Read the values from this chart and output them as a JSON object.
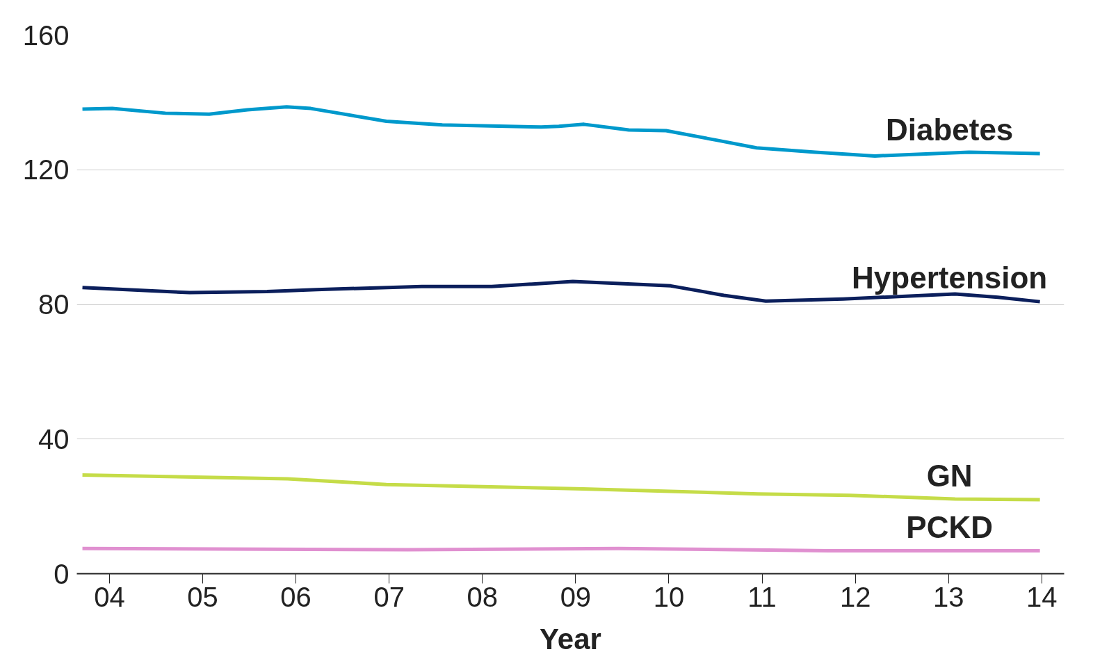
{
  "chart_data": {
    "type": "line",
    "xlabel": "Year",
    "grid": "y",
    "line_style": "solid",
    "xlim": [
      2003.65,
      2014.24
    ],
    "ylim": [
      0,
      160
    ],
    "xticks": [
      {
        "value": 2004,
        "label": "04"
      },
      {
        "value": 2005,
        "label": "05"
      },
      {
        "value": 2006,
        "label": "06"
      },
      {
        "value": 2007,
        "label": "07"
      },
      {
        "value": 2008,
        "label": "08"
      },
      {
        "value": 2009,
        "label": "09"
      },
      {
        "value": 2010,
        "label": "10"
      },
      {
        "value": 2011,
        "label": "11"
      },
      {
        "value": 2012,
        "label": "12"
      },
      {
        "value": 2013,
        "label": "13"
      },
      {
        "value": 2014,
        "label": "14"
      }
    ],
    "yticks": [
      0,
      40,
      80,
      120,
      160
    ],
    "series": [
      {
        "name": "Diabetes",
        "color": "#0099cc",
        "x": [
          2003.71,
          2004.03,
          2004.6,
          2005.07,
          2005.48,
          2005.9,
          2006.16,
          2006.97,
          2007.57,
          2008.63,
          2008.82,
          2009.09,
          2009.57,
          2009.97,
          2010.51,
          2010.94,
          2011.57,
          2012.21,
          2013.22,
          2013.98
        ],
        "values": [
          138.0,
          138.2,
          136.8,
          136.5,
          137.8,
          138.7,
          138.2,
          134.4,
          133.3,
          132.7,
          132.9,
          133.5,
          131.8,
          131.6,
          128.8,
          126.5,
          125.2,
          124.1,
          125.2,
          124.8
        ]
      },
      {
        "name": "Hypertension",
        "color": "#0b1f5c",
        "x": [
          2003.71,
          2004.86,
          2005.69,
          2006.22,
          2007.35,
          2008.1,
          2008.97,
          2010.02,
          2010.59,
          2011.04,
          2011.87,
          2013.07,
          2013.53,
          2013.98
        ],
        "values": [
          85.0,
          83.5,
          83.8,
          84.4,
          85.3,
          85.3,
          86.8,
          85.5,
          82.7,
          81.0,
          81.6,
          83.1,
          82.1,
          80.8
        ]
      },
      {
        "name": "GN",
        "color": "#c5dc48",
        "x": [
          2003.71,
          2005.91,
          2006.97,
          2009.08,
          2010.96,
          2011.94,
          2013.07,
          2013.98
        ],
        "values": [
          29.3,
          28.2,
          26.5,
          25.2,
          23.7,
          23.3,
          22.2,
          22.0
        ]
      },
      {
        "name": "PCKD",
        "color": "#e090d0",
        "x": [
          2003.71,
          2007.2,
          2009.46,
          2011.72,
          2013.98
        ],
        "values": [
          7.5,
          7.1,
          7.5,
          6.8,
          6.8
        ]
      }
    ]
  }
}
